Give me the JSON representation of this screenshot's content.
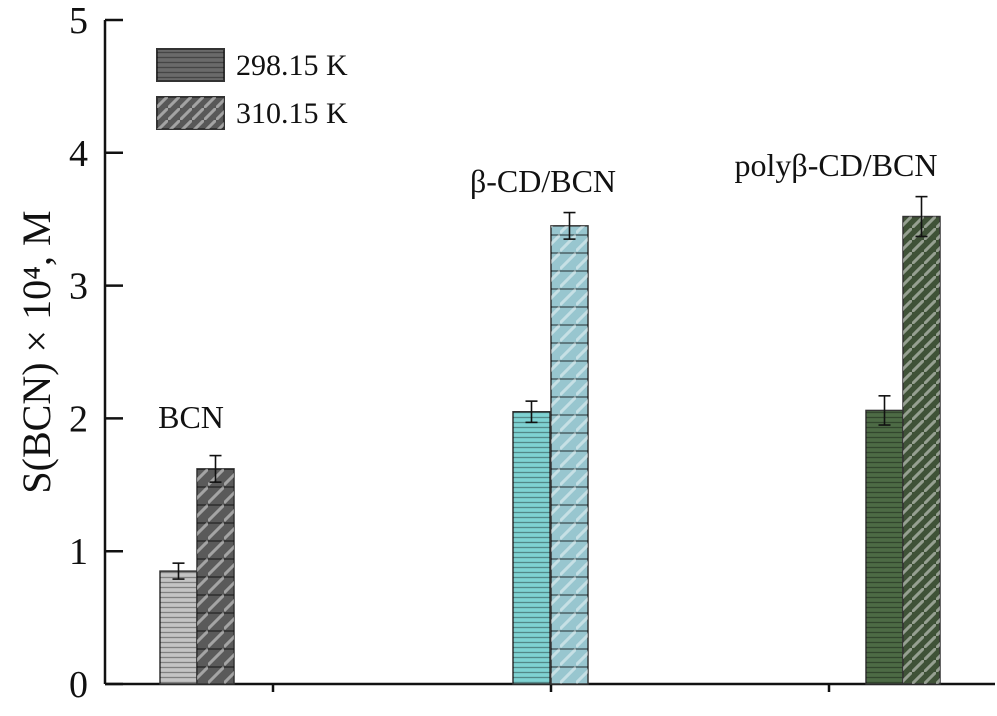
{
  "chart_data": {
    "type": "bar",
    "categories": [
      "BCN",
      "β-CD/BCN",
      "polyβ-CD/BCN"
    ],
    "series": [
      {
        "name": "298.15 K",
        "values": [
          0.85,
          2.05,
          2.06
        ],
        "errors": [
          0.06,
          0.08,
          0.11
        ]
      },
      {
        "name": "310.15 K",
        "values": [
          1.62,
          3.45,
          3.52
        ],
        "errors": [
          0.1,
          0.1,
          0.15
        ]
      }
    ],
    "colors": {
      "BCN": [
        "#c4c4c4",
        "#5a5a5a"
      ],
      "β-CD/BCN": [
        "#7fd3d3",
        "#98c6cf"
      ],
      "polyβ-CD/BCN": [
        "#4d6b45",
        "#3f5237"
      ]
    },
    "ylim": [
      0,
      5
    ],
    "yticks": [
      "0",
      "1",
      "2",
      "3",
      "4",
      "5"
    ],
    "ylabel": "S(BCN) × 10⁴, M",
    "xlabel": "",
    "legend_position": "top-left",
    "grid": false
  }
}
